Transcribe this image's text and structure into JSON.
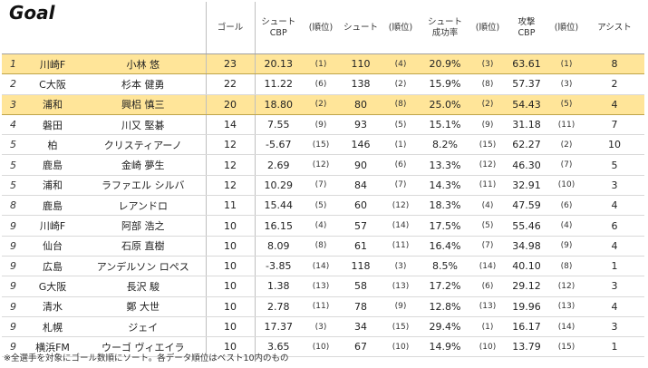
{
  "title": "Goal",
  "headers": {
    "goals": "ゴール",
    "shot_cbp_line1": "シュート",
    "shot_cbp_line2": "CBP",
    "rank": "(順位)",
    "shots": "シュート",
    "success_line1": "シュート",
    "success_line2": "成功率",
    "attack_line1": "攻撃",
    "attack_line2": "CBP",
    "assists": "アシスト"
  },
  "rows": [
    {
      "rank": "1",
      "club": "川崎F",
      "name": "小林 悠",
      "goals": "23",
      "shot_cbp": "20.13",
      "shot_cbp_rank": "(1)",
      "shots": "110",
      "shots_rank": "(4)",
      "success": "20.9%",
      "success_rank": "(3)",
      "attack_cbp": "63.61",
      "attack_rank": "(1)",
      "assists": "8"
    },
    {
      "rank": "2",
      "club": "C大阪",
      "name": "杉本 健勇",
      "goals": "22",
      "shot_cbp": "11.22",
      "shot_cbp_rank": "(6)",
      "shots": "138",
      "shots_rank": "(2)",
      "success": "15.9%",
      "success_rank": "(8)",
      "attack_cbp": "57.37",
      "attack_rank": "(3)",
      "assists": "2"
    },
    {
      "rank": "3",
      "club": "浦和",
      "name": "興梠 慎三",
      "goals": "20",
      "shot_cbp": "18.80",
      "shot_cbp_rank": "(2)",
      "shots": "80",
      "shots_rank": "(8)",
      "success": "25.0%",
      "success_rank": "(2)",
      "attack_cbp": "54.43",
      "attack_rank": "(5)",
      "assists": "4"
    },
    {
      "rank": "4",
      "club": "磐田",
      "name": "川又 堅碁",
      "goals": "14",
      "shot_cbp": "7.55",
      "shot_cbp_rank": "(9)",
      "shots": "93",
      "shots_rank": "(5)",
      "success": "15.1%",
      "success_rank": "(9)",
      "attack_cbp": "31.18",
      "attack_rank": "(11)",
      "assists": "7"
    },
    {
      "rank": "5",
      "club": "柏",
      "name": "クリスティアーノ",
      "goals": "12",
      "shot_cbp": "-5.67",
      "shot_cbp_rank": "(15)",
      "shots": "146",
      "shots_rank": "(1)",
      "success": "8.2%",
      "success_rank": "(15)",
      "attack_cbp": "62.27",
      "attack_rank": "(2)",
      "assists": "10"
    },
    {
      "rank": "5",
      "club": "鹿島",
      "name": "金崎 夢生",
      "goals": "12",
      "shot_cbp": "2.69",
      "shot_cbp_rank": "(12)",
      "shots": "90",
      "shots_rank": "(6)",
      "success": "13.3%",
      "success_rank": "(12)",
      "attack_cbp": "46.30",
      "attack_rank": "(7)",
      "assists": "5"
    },
    {
      "rank": "5",
      "club": "浦和",
      "name": "ラファエル シルバ",
      "goals": "12",
      "shot_cbp": "10.29",
      "shot_cbp_rank": "(7)",
      "shots": "84",
      "shots_rank": "(7)",
      "success": "14.3%",
      "success_rank": "(11)",
      "attack_cbp": "32.91",
      "attack_rank": "(10)",
      "assists": "3"
    },
    {
      "rank": "8",
      "club": "鹿島",
      "name": "レアンドロ",
      "goals": "11",
      "shot_cbp": "15.44",
      "shot_cbp_rank": "(5)",
      "shots": "60",
      "shots_rank": "(12)",
      "success": "18.3%",
      "success_rank": "(4)",
      "attack_cbp": "47.59",
      "attack_rank": "(6)",
      "assists": "4"
    },
    {
      "rank": "9",
      "club": "川崎F",
      "name": "阿部 浩之",
      "goals": "10",
      "shot_cbp": "16.15",
      "shot_cbp_rank": "(4)",
      "shots": "57",
      "shots_rank": "(14)",
      "success": "17.5%",
      "success_rank": "(5)",
      "attack_cbp": "55.46",
      "attack_rank": "(4)",
      "assists": "6"
    },
    {
      "rank": "9",
      "club": "仙台",
      "name": "石原 直樹",
      "goals": "10",
      "shot_cbp": "8.09",
      "shot_cbp_rank": "(8)",
      "shots": "61",
      "shots_rank": "(11)",
      "success": "16.4%",
      "success_rank": "(7)",
      "attack_cbp": "34.98",
      "attack_rank": "(9)",
      "assists": "4"
    },
    {
      "rank": "9",
      "club": "広島",
      "name": "アンデルソン ロペス",
      "goals": "10",
      "shot_cbp": "-3.85",
      "shot_cbp_rank": "(14)",
      "shots": "118",
      "shots_rank": "(3)",
      "success": "8.5%",
      "success_rank": "(14)",
      "attack_cbp": "40.10",
      "attack_rank": "(8)",
      "assists": "1"
    },
    {
      "rank": "9",
      "club": "G大阪",
      "name": "長沢 駿",
      "goals": "10",
      "shot_cbp": "1.38",
      "shot_cbp_rank": "(13)",
      "shots": "58",
      "shots_rank": "(13)",
      "success": "17.2%",
      "success_rank": "(6)",
      "attack_cbp": "29.12",
      "attack_rank": "(12)",
      "assists": "3"
    },
    {
      "rank": "9",
      "club": "清水",
      "name": "鄭 大世",
      "goals": "10",
      "shot_cbp": "2.78",
      "shot_cbp_rank": "(11)",
      "shots": "78",
      "shots_rank": "(9)",
      "success": "12.8%",
      "success_rank": "(13)",
      "attack_cbp": "19.96",
      "attack_rank": "(13)",
      "assists": "4"
    },
    {
      "rank": "9",
      "club": "札幌",
      "name": "ジェイ",
      "goals": "10",
      "shot_cbp": "17.37",
      "shot_cbp_rank": "(3)",
      "shots": "34",
      "shots_rank": "(15)",
      "success": "29.4%",
      "success_rank": "(1)",
      "attack_cbp": "16.17",
      "attack_rank": "(14)",
      "assists": "3"
    },
    {
      "rank": "9",
      "club": "横浜FM",
      "name": "ウーゴ ヴィエイラ",
      "goals": "10",
      "shot_cbp": "3.65",
      "shot_cbp_rank": "(10)",
      "shots": "67",
      "shots_rank": "(10)",
      "success": "14.9%",
      "success_rank": "(10)",
      "attack_cbp": "13.79",
      "attack_rank": "(15)",
      "assists": "1"
    }
  ],
  "footnote": "※全選手を対象にゴール数順にソート。各データ順位はベスト10内のもの"
}
